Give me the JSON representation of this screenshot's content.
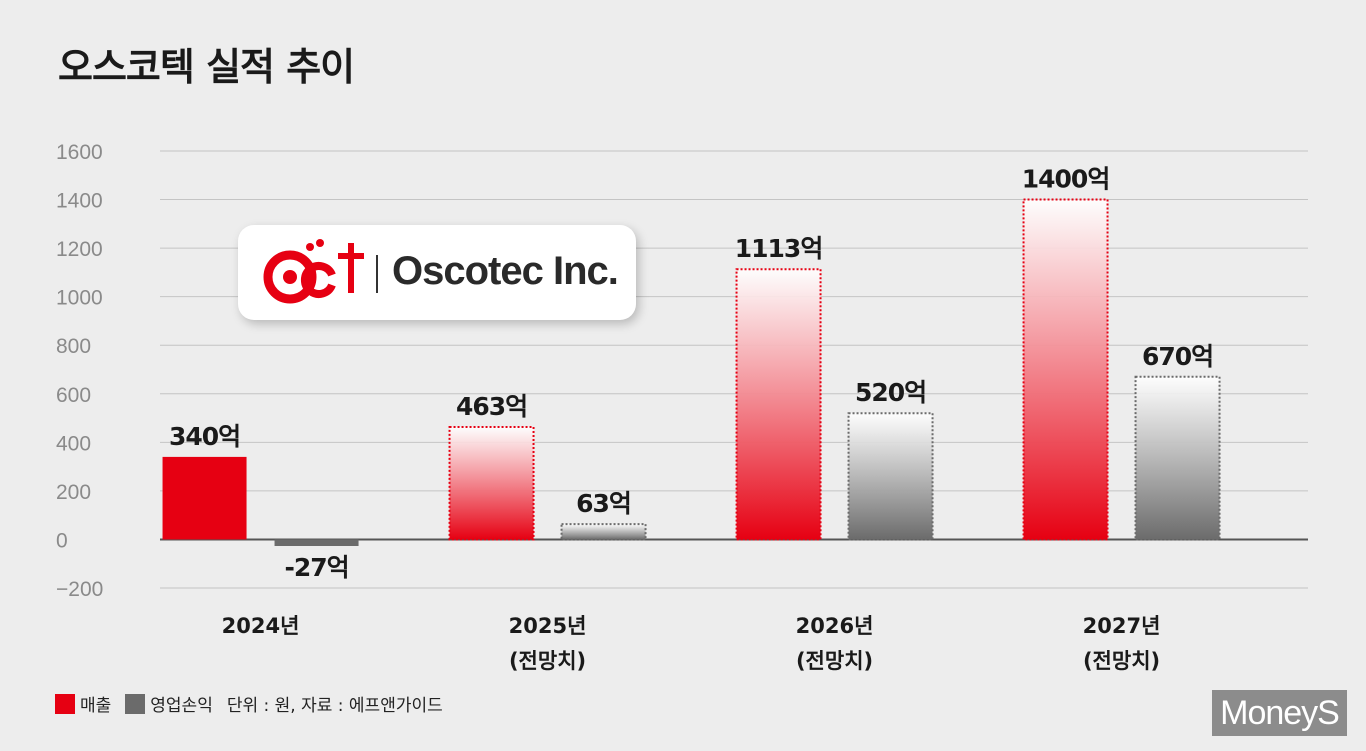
{
  "title": "오스코텍 실적 추이",
  "logo": {
    "company": "Oscotec Inc.",
    "mark": "OCt"
  },
  "legend": {
    "revenue": "매출",
    "operating_profit": "영업손익",
    "source_note": "단위 : 원, 자료 : 에프앤가이드"
  },
  "watermark": "MoneyS",
  "colors": {
    "revenue": "#e60012",
    "operating_profit": "#6b6b6b",
    "grid": "#c4c4c4"
  },
  "chart_data": {
    "type": "bar",
    "title": "오스코텍 실적 추이",
    "categories": [
      {
        "year": "2024년",
        "note": ""
      },
      {
        "year": "2025년",
        "note": "(전망치)"
      },
      {
        "year": "2026년",
        "note": "(전망치)"
      },
      {
        "year": "2027년",
        "note": "(전망치)"
      }
    ],
    "series": [
      {
        "name": "매출",
        "values": [
          340,
          463,
          1113,
          1400
        ],
        "labels": [
          "340억",
          "463억",
          "1113억",
          "1400억"
        ],
        "forecast": [
          false,
          true,
          true,
          true
        ]
      },
      {
        "name": "영업손익",
        "values": [
          -27,
          63,
          520,
          670
        ],
        "labels": [
          "-27억",
          "63억",
          "520억",
          "670억"
        ],
        "forecast": [
          false,
          true,
          true,
          true
        ]
      }
    ],
    "yticks": [
      "1600",
      "1400",
      "1200",
      "1000",
      "800",
      "600",
      "400",
      "200",
      "0",
      "−200"
    ],
    "ylim": [
      -200,
      1600
    ],
    "grid": true,
    "legend_position": "bottom-left"
  }
}
